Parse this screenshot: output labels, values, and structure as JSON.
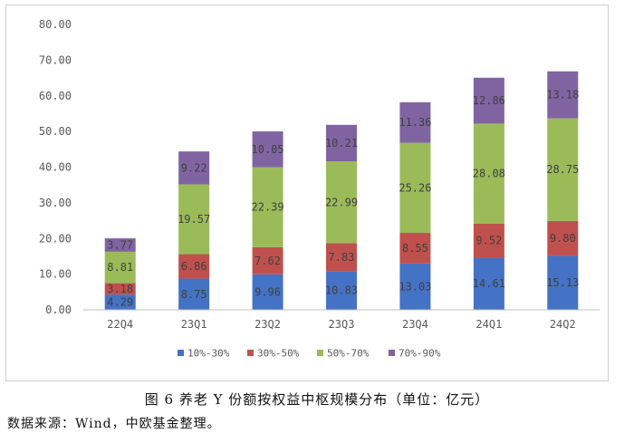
{
  "caption": "图 6 养老 Y 份额按权益中枢规模分布（单位：亿元）",
  "source": "数据来源：Wind，中欧基金整理。",
  "chart_data": {
    "type": "bar",
    "stacked": true,
    "categories": [
      "22Q4",
      "23Q1",
      "23Q2",
      "23Q3",
      "23Q4",
      "24Q1",
      "24Q2"
    ],
    "series": [
      {
        "name": "10%-30%",
        "color": "#4472c4",
        "values": [
          4.29,
          8.75,
          9.96,
          10.83,
          13.03,
          14.61,
          15.13
        ],
        "labels": [
          "4.29",
          "8.75",
          "9.96",
          "10.83",
          "13.03",
          "14.61",
          "15.13"
        ]
      },
      {
        "name": "30%-50%",
        "color": "#c0504d",
        "values": [
          3.18,
          6.86,
          7.62,
          7.83,
          8.55,
          9.52,
          9.8
        ],
        "labels": [
          "3.18",
          "6.86",
          "7.62",
          "7.83",
          "8.55",
          "9.52",
          "9.80"
        ]
      },
      {
        "name": "50%-70%",
        "color": "#9bbb59",
        "values": [
          8.81,
          19.57,
          22.39,
          22.99,
          25.26,
          28.08,
          28.75
        ],
        "labels": [
          "8.81",
          "19.57",
          "22.39",
          "22.99",
          "25.26",
          "28.08",
          "28.75"
        ]
      },
      {
        "name": "70%-90%",
        "color": "#8064a2",
        "values": [
          3.77,
          9.22,
          10.05,
          10.21,
          11.36,
          12.86,
          13.18
        ],
        "labels": [
          "3.77",
          "9.22",
          "10.05",
          "10.21",
          "11.36",
          "12.86",
          "13.18"
        ]
      }
    ],
    "ylim": [
      0,
      80
    ],
    "yticks": [
      "0.00",
      "10.00",
      "20.00",
      "30.00",
      "40.00",
      "50.00",
      "60.00",
      "70.00",
      "80.00"
    ],
    "grid": false,
    "legend": "bottom"
  }
}
